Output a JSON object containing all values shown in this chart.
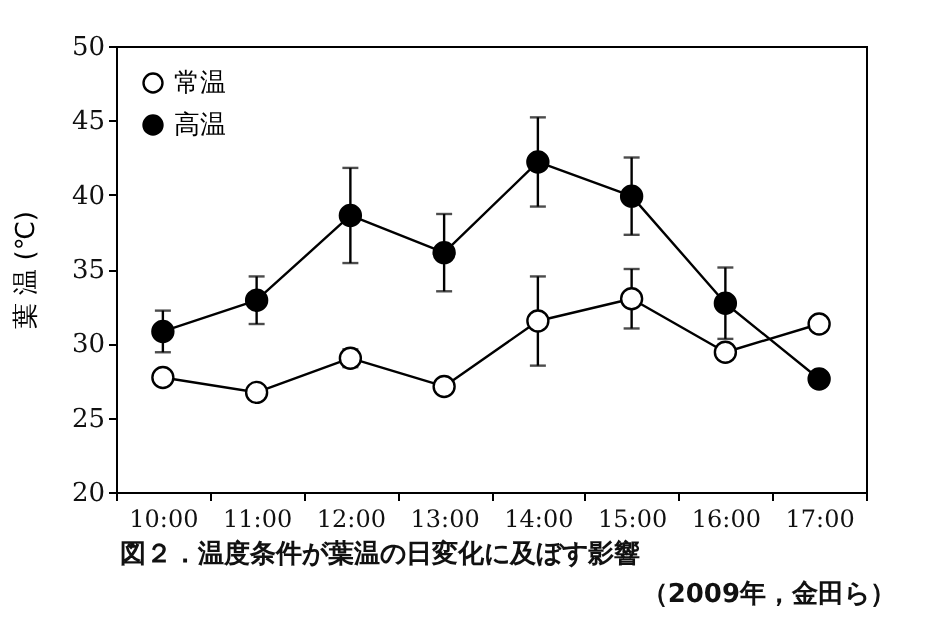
{
  "chart_data": {
    "type": "line",
    "ylabel": "葉 温 (℃)",
    "categories": [
      "10:00",
      "11:00",
      "12:00",
      "13:00",
      "14:00",
      "15:00",
      "16:00",
      "17:00"
    ],
    "series": [
      {
        "name": "常温",
        "color": "#000000",
        "values": [
          27.7,
          26.7,
          29.0,
          27.1,
          31.5,
          33.0,
          29.4,
          31.3
        ],
        "errors": [
          0.4,
          null,
          0.6,
          null,
          3.0,
          2.0,
          0.5,
          null
        ]
      },
      {
        "name": "高温",
        "color": "#000000",
        "values": [
          30.8,
          32.9,
          38.6,
          36.1,
          42.2,
          39.9,
          32.7,
          27.6
        ],
        "errors": [
          1.4,
          1.6,
          3.2,
          2.6,
          3.0,
          2.6,
          2.4,
          null
        ]
      }
    ],
    "ylim": [
      20,
      50
    ],
    "yticks": [
      20,
      25,
      30,
      35,
      40,
      45,
      50
    ],
    "grid": false,
    "legend": "top left",
    "marker": "circle",
    "annotations": [
      "図２．温度条件が葉温の日変化に及ぼす影響",
      "（2009年，金田ら）"
    ]
  }
}
